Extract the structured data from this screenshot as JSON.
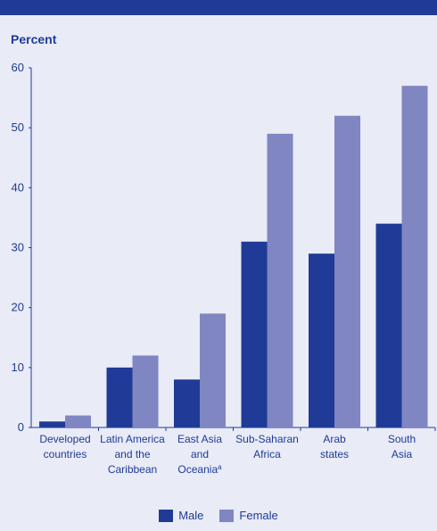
{
  "chart_data": {
    "type": "bar",
    "ylabel": "Percent",
    "ylim": [
      0,
      60
    ],
    "yticks": [
      0,
      10,
      20,
      30,
      40,
      50,
      60
    ],
    "categories": [
      [
        "Developed",
        "countries"
      ],
      [
        "Latin America",
        "and the",
        "Caribbean"
      ],
      [
        "East Asia",
        "and",
        "Oceania"
      ],
      [
        "Sub-Saharan",
        "Africa"
      ],
      [
        "Arab",
        "states"
      ],
      [
        "South",
        "Asia"
      ]
    ],
    "category_superscripts": [
      "",
      "",
      "a",
      "",
      "",
      ""
    ],
    "series": [
      {
        "name": "Male",
        "color": "#1f3b97",
        "values": [
          1,
          10,
          8,
          31,
          29,
          34
        ]
      },
      {
        "name": "Female",
        "color": "#8086c2",
        "values": [
          2,
          12,
          19,
          49,
          52,
          57
        ]
      }
    ],
    "legend": "bottom-center",
    "grid": false
  }
}
